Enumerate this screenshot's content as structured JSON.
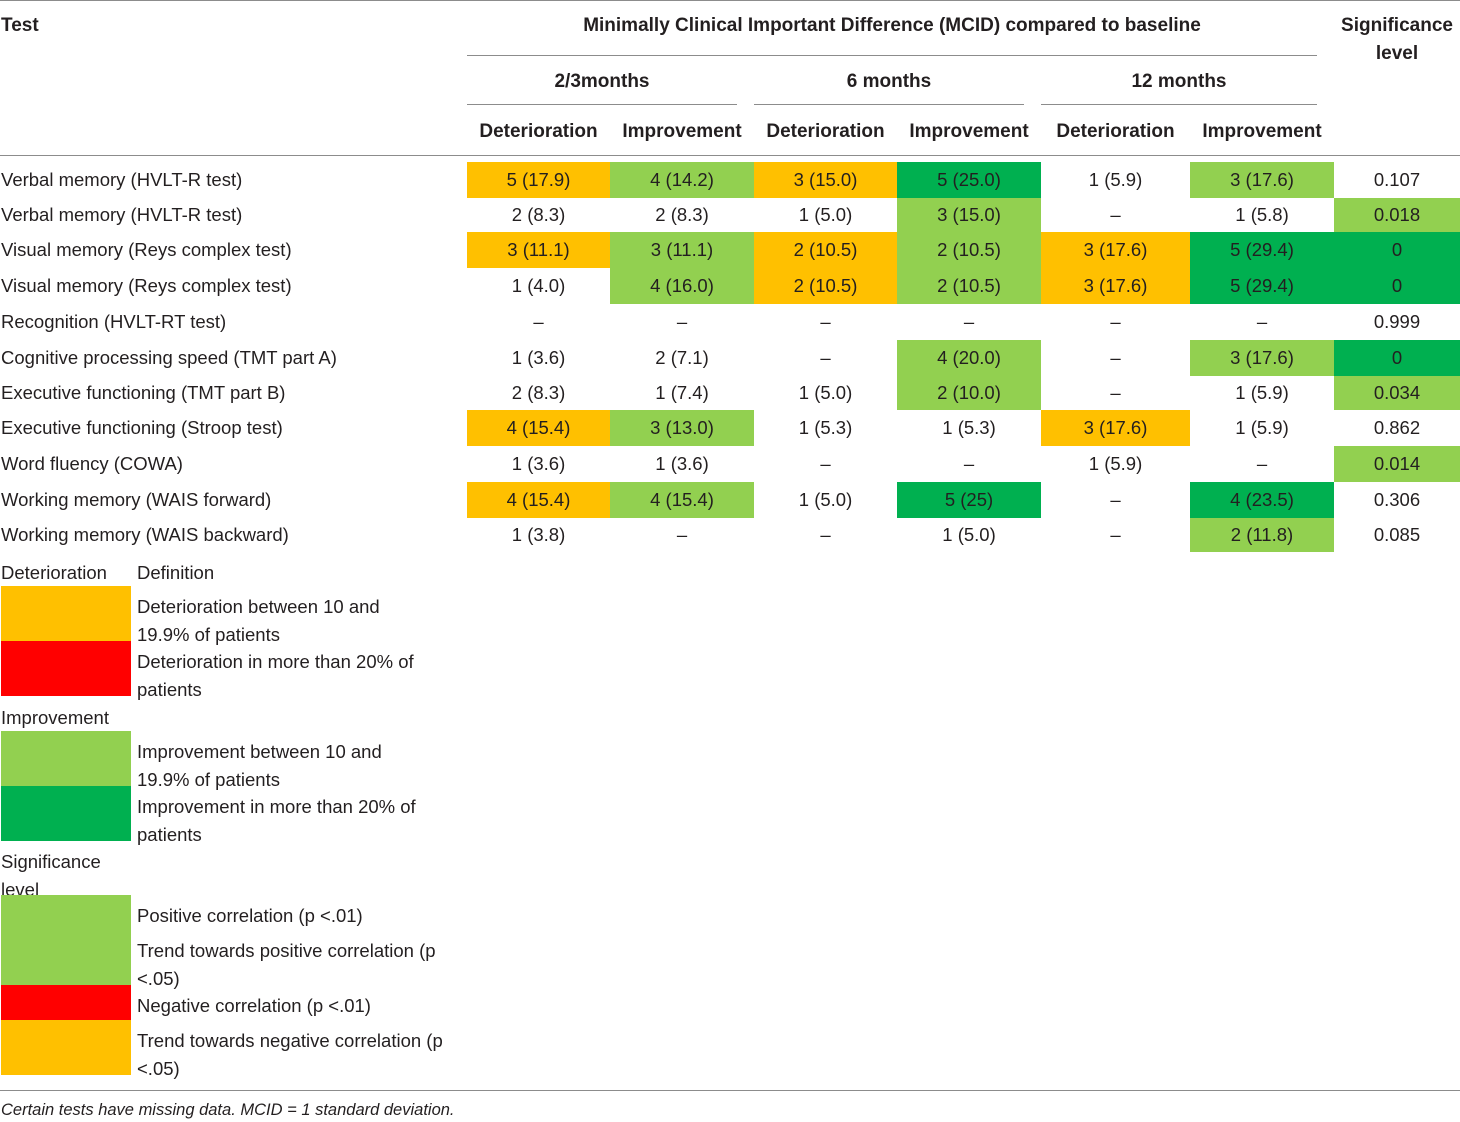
{
  "colors": {
    "orange": "#ffc000",
    "light_green": "#92d050",
    "dark_green": "#00b050",
    "red": "#ff0000"
  },
  "header": {
    "test": "Test",
    "mcid": "Minimally Clinical Important Difference (MCID) compared to baseline",
    "significance_line1": "Significance",
    "significance_line2": "level",
    "periods": [
      "2/3months",
      "6 months",
      "12 months"
    ],
    "sub": [
      "Deterioration",
      "Improvement",
      "Deterioration",
      "Improvement",
      "Deterioration",
      "Improvement"
    ]
  },
  "rows": [
    {
      "test": "Verbal memory (HVLT-R test)",
      "cells": [
        "5 (17.9)",
        "4 (14.2)",
        "3 (15.0)",
        "5 (25.0)",
        "1 (5.9)",
        "3 (17.6)",
        "0.107"
      ],
      "colors": [
        "orange",
        "light_green",
        "orange",
        "dark_green",
        "",
        "light_green",
        ""
      ]
    },
    {
      "test": "Verbal memory (HVLT-R test)",
      "cells": [
        "2 (8.3)",
        "2 (8.3)",
        "1 (5.0)",
        "3 (15.0)",
        "–",
        "1 (5.8)",
        "0.018"
      ],
      "colors": [
        "",
        "",
        "",
        "light_green",
        "",
        "",
        "light_green"
      ]
    },
    {
      "test": "Visual memory (Reys complex test)",
      "cells": [
        "3 (11.1)",
        "3 (11.1)",
        "2 (10.5)",
        "2 (10.5)",
        "3 (17.6)",
        "5 (29.4)",
        "0"
      ],
      "colors": [
        "orange",
        "light_green",
        "orange",
        "light_green",
        "orange",
        "dark_green",
        "dark_green"
      ]
    },
    {
      "test": "Visual memory (Reys complex test)",
      "cells": [
        "1 (4.0)",
        "4 (16.0)",
        "2 (10.5)",
        "2 (10.5)",
        "3 (17.6)",
        "5 (29.4)",
        "0"
      ],
      "colors": [
        "",
        "light_green",
        "orange",
        "light_green",
        "orange",
        "dark_green",
        "dark_green"
      ]
    },
    {
      "test": "Recognition (HVLT-RT test)",
      "cells": [
        "–",
        "–",
        "–",
        "–",
        "–",
        "–",
        "0.999"
      ],
      "colors": [
        "",
        "",
        "",
        "",
        "",
        "",
        ""
      ]
    },
    {
      "test": "Cognitive processing speed (TMT part A)",
      "cells": [
        "1 (3.6)",
        "2 (7.1)",
        "–",
        "4 (20.0)",
        "–",
        "3 (17.6)",
        "0"
      ],
      "colors": [
        "",
        "",
        "",
        "light_green",
        "",
        "light_green",
        "dark_green"
      ]
    },
    {
      "test": "Executive functioning (TMT part B)",
      "cells": [
        "2 (8.3)",
        "1 (7.4)",
        "1 (5.0)",
        "2 (10.0)",
        "–",
        "1 (5.9)",
        "0.034"
      ],
      "colors": [
        "",
        "",
        "",
        "light_green",
        "",
        "",
        "light_green"
      ]
    },
    {
      "test": "Executive functioning (Stroop test)",
      "cells": [
        "4 (15.4)",
        "3 (13.0)",
        "1 (5.3)",
        "1 (5.3)",
        "3 (17.6)",
        "1 (5.9)",
        "0.862"
      ],
      "colors": [
        "orange",
        "light_green",
        "",
        "",
        "orange",
        "",
        ""
      ]
    },
    {
      "test": "Word fluency (COWA)",
      "cells": [
        "1 (3.6)",
        "1 (3.6)",
        "–",
        "–",
        "1 (5.9)",
        "–",
        "0.014"
      ],
      "colors": [
        "",
        "",
        "",
        "",
        "",
        "",
        "light_green"
      ]
    },
    {
      "test": "Working memory (WAIS forward)",
      "cells": [
        "4 (15.4)",
        "4 (15.4)",
        "1 (5.0)",
        "5 (25)",
        "–",
        "4 (23.5)",
        "0.306"
      ],
      "colors": [
        "orange",
        "light_green",
        "",
        "dark_green",
        "",
        "dark_green",
        ""
      ]
    },
    {
      "test": "Working memory (WAIS backward)",
      "cells": [
        "1 (3.8)",
        "–",
        "–",
        "1 (5.0)",
        "–",
        "2 (11.8)",
        "0.085"
      ],
      "colors": [
        "",
        "",
        "",
        "",
        "",
        "light_green",
        ""
      ]
    }
  ],
  "legend": {
    "deterioration_title": "Deterioration",
    "definition_title": "Definition",
    "det_10_19": "Deterioration between 10 and 19.9% of patients",
    "det_20": "Deterioration in more than 20% of patients",
    "improvement_title": "Improvement",
    "imp_10_19": "Improvement between 10 and 19.9% of patients",
    "imp_20": "Improvement in more than 20% of patients",
    "significance_title": "Significance level",
    "pos_corr": "Positive correlation (p <.01)",
    "pos_trend": "Trend towards positive correlation (p <.05)",
    "neg_corr": "Negative correlation (p <.01)",
    "neg_trend": "Trend towards negative correlation (p <.05)"
  },
  "footnote": "Certain tests have missing data. MCID = 1 standard deviation."
}
